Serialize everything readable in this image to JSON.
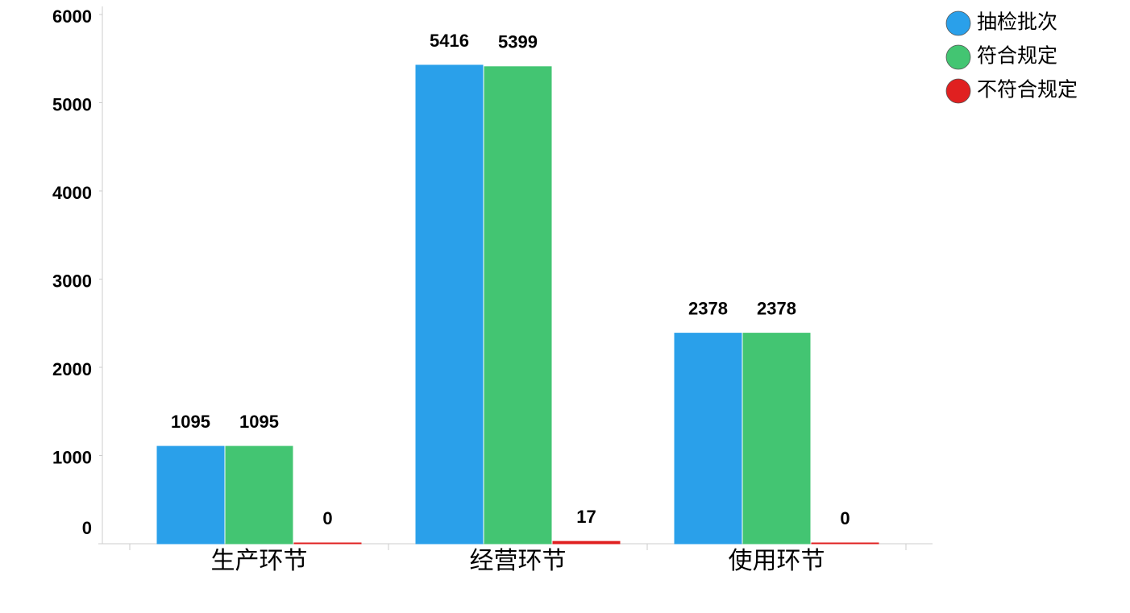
{
  "chart_data": {
    "type": "bar",
    "categories": [
      "生产环节",
      "经营环节",
      "使用环节"
    ],
    "series": [
      {
        "name": "抽检批次",
        "color": "#2aa0ea",
        "values": [
          1095,
          5416,
          2378
        ]
      },
      {
        "name": "符合规定",
        "color": "#43c572",
        "values": [
          1095,
          5399,
          2378
        ]
      },
      {
        "name": "不符合规定",
        "color": "#e02020",
        "values": [
          0,
          17,
          0
        ]
      }
    ],
    "ylim": [
      0,
      6000
    ],
    "yticks": [
      0,
      1000,
      2000,
      3000,
      4000,
      5000,
      6000
    ],
    "legend": "top-right"
  }
}
